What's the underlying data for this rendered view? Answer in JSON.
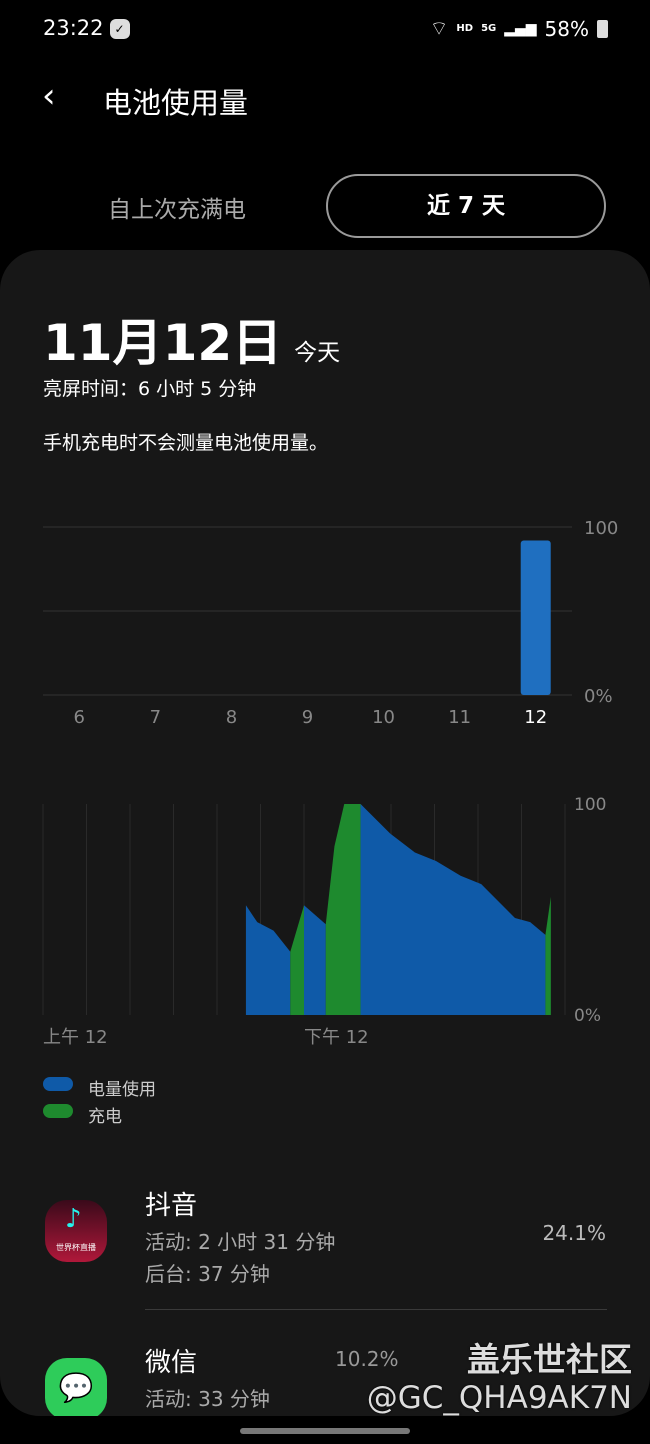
{
  "status_bar": {
    "time": "23:22",
    "network": "HD",
    "cellular": "5G",
    "battery": "58%"
  },
  "header": {
    "title": "电池使用量"
  },
  "tabs": [
    {
      "label": "自上次充满电",
      "selected": false
    },
    {
      "label": "近 7 天",
      "selected": true
    }
  ],
  "summary": {
    "date": "11月12日",
    "today": "今天",
    "screen_time": "亮屏时间：6 小时 5 分钟",
    "note": "手机充电时不会测量电池使用量。"
  },
  "chart_data": [
    {
      "type": "bar",
      "categories": [
        "6",
        "7",
        "8",
        "9",
        "10",
        "11",
        "12"
      ],
      "values": [
        0,
        0,
        0,
        0,
        0,
        0,
        92
      ],
      "y_tick_labels": [
        "100",
        "0%"
      ],
      "ylim": [
        0,
        100
      ],
      "color": "#1f6fc0",
      "grid": true
    },
    {
      "type": "area",
      "x_unit": "hour of day",
      "xlim": [
        0,
        24
      ],
      "ylim": [
        0,
        100
      ],
      "y_tick_labels": [
        "100",
        "0%"
      ],
      "x_tick_labels": [
        {
          "hour": 0,
          "label": "上午 12"
        },
        {
          "hour": 12,
          "label": "下午 12"
        }
      ],
      "series": [
        {
          "name": "电量使用",
          "color": "#0f5aa8",
          "points": [
            [
              9.33,
              52
            ],
            [
              9.85,
              44
            ],
            [
              10.6,
              40
            ],
            [
              11.37,
              30
            ]
          ]
        },
        {
          "name": "充电",
          "color": "#1e8a2e",
          "points": [
            [
              11.37,
              30
            ],
            [
              12.0,
              52
            ]
          ]
        },
        {
          "name": "电量使用",
          "color": "#0f5aa8",
          "points": [
            [
              12.0,
              52
            ],
            [
              13.0,
              43
            ]
          ]
        },
        {
          "name": "充电",
          "color": "#1e8a2e",
          "points": [
            [
              13.0,
              43
            ],
            [
              13.4,
              80
            ],
            [
              13.85,
              100
            ],
            [
              14.6,
              100
            ]
          ]
        },
        {
          "name": "电量使用",
          "color": "#0f5aa8",
          "points": [
            [
              14.6,
              100
            ],
            [
              15.96,
              86
            ],
            [
              17.1,
              77
            ],
            [
              18.07,
              73
            ],
            [
              19.2,
              66
            ],
            [
              20.15,
              62
            ],
            [
              21.7,
              46
            ],
            [
              22.4,
              44
            ],
            [
              23.1,
              38
            ]
          ]
        },
        {
          "name": "充电",
          "color": "#1e8a2e",
          "points": [
            [
              23.1,
              38
            ],
            [
              23.35,
              56
            ]
          ]
        }
      ]
    }
  ],
  "legend": [
    {
      "label": "电量使用",
      "color": "#0f5aa8"
    },
    {
      "label": "充电",
      "color": "#1e8a2e"
    }
  ],
  "apps": [
    {
      "name": "抖音",
      "active": "活动: 2 小时 31 分钟",
      "background": "后台: 37 分钟",
      "percent": "24.1%",
      "icon_text": "世界杯直播"
    },
    {
      "name": "微信",
      "active": "活动: 33 分钟",
      "percent": "10.2%"
    }
  ],
  "watermark": {
    "line1": "盖乐世社区",
    "line2": "@GC_QHA9AK7N"
  }
}
